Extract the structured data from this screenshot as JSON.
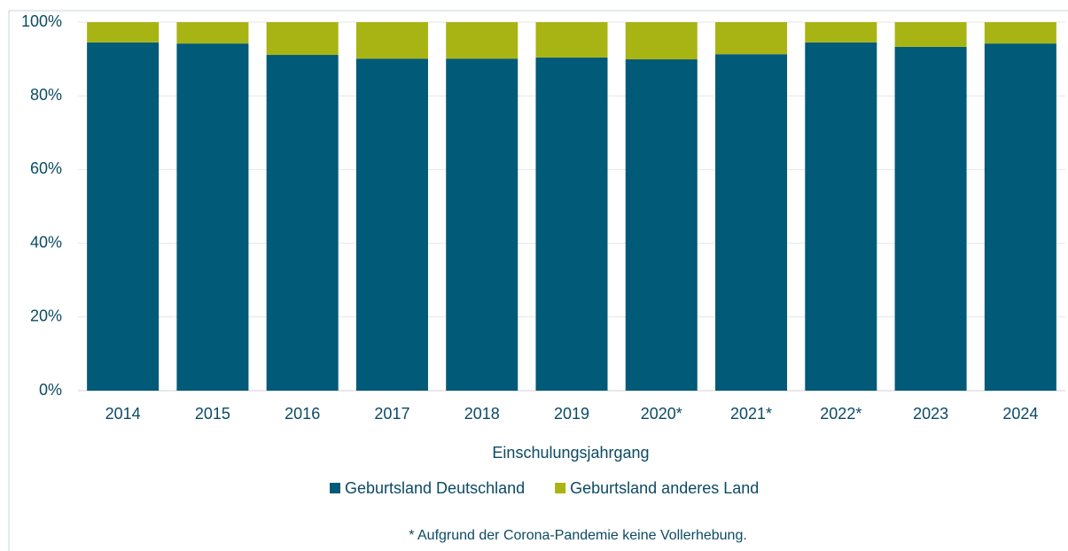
{
  "chart_data": {
    "type": "stacked_bar",
    "categories": [
      "2014",
      "2015",
      "2016",
      "2017",
      "2018",
      "2019",
      "2020*",
      "2021*",
      "2022*",
      "2023",
      "2024"
    ],
    "series": [
      {
        "name": "Geburtsland Deutschland",
        "color": "#005a78",
        "values": [
          94.5,
          94.2,
          91.1,
          90.1,
          90.1,
          90.4,
          89.9,
          91.3,
          94.5,
          93.3,
          94.2
        ]
      },
      {
        "name": "Geburtsland anderes Land",
        "color": "#a8b414",
        "values": [
          5.5,
          5.8,
          8.9,
          9.9,
          9.9,
          9.6,
          10.1,
          8.7,
          5.5,
          6.7,
          5.8
        ]
      }
    ],
    "ylim": [
      0,
      100
    ],
    "yticks": [
      {
        "value": 0,
        "label": "0%"
      },
      {
        "value": 20,
        "label": "20%"
      },
      {
        "value": 40,
        "label": "40%"
      },
      {
        "value": 60,
        "label": "60%"
      },
      {
        "value": 80,
        "label": "80%"
      },
      {
        "value": 100,
        "label": "100%"
      }
    ],
    "xlabel": "Einschulungsjahrgang",
    "note": "* Aufgrund der Corona-Pandemie keine Vollerhebung.",
    "grid": true,
    "legend": "bottom"
  }
}
